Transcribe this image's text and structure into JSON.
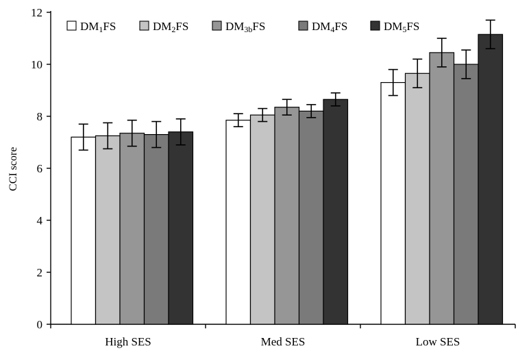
{
  "chart_data": {
    "type": "bar",
    "title": "",
    "xlabel": "",
    "ylabel": "CCI score",
    "ylim": [
      0,
      12
    ],
    "yticks": [
      "0",
      "2",
      "4",
      "6",
      "8",
      "10",
      "12"
    ],
    "grid": false,
    "legend_position": "top-left",
    "categories": [
      "High SES",
      "Med SES",
      "Low SES"
    ],
    "series": [
      {
        "name": "DM1FS",
        "sub": "1",
        "color": "#ffffff",
        "values": [
          7.2,
          7.85,
          9.3
        ],
        "errors": [
          0.5,
          0.25,
          0.5
        ]
      },
      {
        "name": "DM2FS",
        "sub": "2",
        "color": "#c4c4c4",
        "values": [
          7.25,
          8.05,
          9.65
        ],
        "errors": [
          0.5,
          0.25,
          0.55
        ]
      },
      {
        "name": "DM3bFS",
        "sub": "3b",
        "color": "#969696",
        "values": [
          7.35,
          8.35,
          10.45
        ],
        "errors": [
          0.5,
          0.3,
          0.55
        ]
      },
      {
        "name": "DM4FS",
        "sub": "4",
        "color": "#7a7a7a",
        "values": [
          7.3,
          8.2,
          10.0
        ],
        "errors": [
          0.5,
          0.25,
          0.55
        ]
      },
      {
        "name": "DM5FS",
        "sub": "5",
        "color": "#333333",
        "values": [
          7.4,
          8.65,
          11.15
        ],
        "errors": [
          0.5,
          0.25,
          0.55
        ]
      }
    ]
  }
}
